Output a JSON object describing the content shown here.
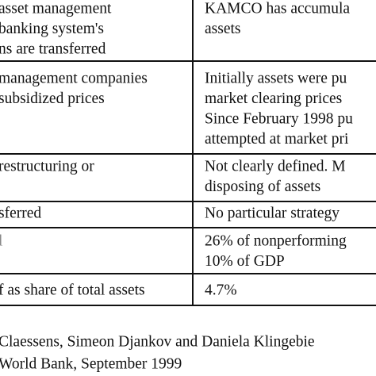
{
  "table": {
    "rows": [
      [
        [
          "asset management",
          "banking system's",
          "ns are transferred"
        ],
        [
          "KAMCO has accumula",
          "assets"
        ]
      ],
      [
        [
          "management companies",
          "subsidized prices"
        ],
        [
          "Initially assets were pu",
          "market clearing prices",
          "Since February 1998 pu",
          "attempted at market pri"
        ]
      ],
      [
        [
          "restructuring or"
        ],
        [
          "Not clearly defined. M",
          "disposing of assets"
        ]
      ],
      [
        [
          "sferred"
        ],
        [
          "No particular strategy"
        ]
      ],
      [
        [
          "l"
        ],
        [
          "26% of nonperforming",
          "10% of GDP"
        ]
      ],
      [
        [
          "f as share of total assets"
        ],
        [
          "4.7%"
        ]
      ]
    ]
  },
  "footnote": [
    "Claessens, Simeon Djankov and Daniela Klingebie",
    "World Bank, September 1999"
  ]
}
